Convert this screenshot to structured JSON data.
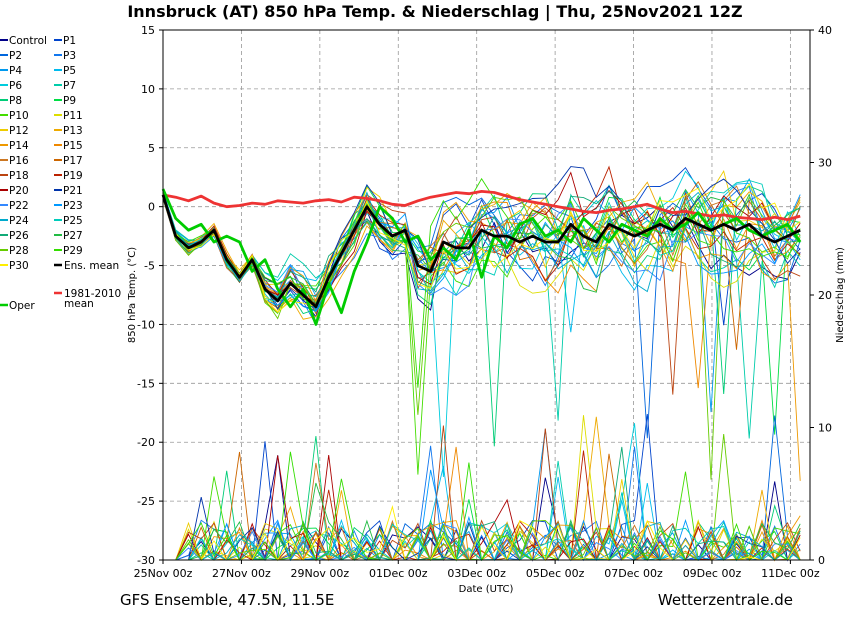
{
  "chart_data": {
    "type": "line",
    "title": "Innsbruck  (AT)  850 hPa Temp. & Niederschlag | Thu, 25Nov2021 12Z",
    "footer_left": "GFS Ensemble, 47.5N, 11.5E",
    "footer_right": "Wetterzentrale.de",
    "xlabel": "Date (UTC)",
    "ylabel_left": "850 hPa Temp. (°C)",
    "ylabel_right": "Niederschlag (mm)",
    "x_ticks": [
      "25Nov 00z",
      "27Nov 00z",
      "29Nov 00z",
      "01Dec 00z",
      "03Dec 00z",
      "05Dec 00z",
      "07Dec 00z",
      "09Dec 00z",
      "11Dec 00z"
    ],
    "x_range_days": [
      0,
      16.5
    ],
    "ylim_left": [
      -30,
      15
    ],
    "yticks_left": [
      15,
      10,
      5,
      0,
      -5,
      -10,
      -15,
      -20,
      -25,
      -30
    ],
    "ylim_right": [
      0,
      40
    ],
    "yticks_right": [
      40,
      30,
      20,
      10,
      0
    ],
    "grid": true,
    "legend_position": "left",
    "series": [
      {
        "name": "Control",
        "color": "#000088"
      },
      {
        "name": "P1",
        "color": "#0044cc"
      },
      {
        "name": "P2",
        "color": "#0066dd"
      },
      {
        "name": "P3",
        "color": "#1177ee"
      },
      {
        "name": "P4",
        "color": "#0099ee"
      },
      {
        "name": "P5",
        "color": "#00bbee"
      },
      {
        "name": "P6",
        "color": "#00ccdd"
      },
      {
        "name": "P7",
        "color": "#00ccaa"
      },
      {
        "name": "P8",
        "color": "#00cc77"
      },
      {
        "name": "P9",
        "color": "#00dd44"
      },
      {
        "name": "P10",
        "color": "#44dd00"
      },
      {
        "name": "P11",
        "color": "#dddd00"
      },
      {
        "name": "P12",
        "color": "#eecc00"
      },
      {
        "name": "P13",
        "color": "#eeaa00"
      },
      {
        "name": "P14",
        "color": "#ee9900"
      },
      {
        "name": "P15",
        "color": "#ee8800"
      },
      {
        "name": "P16",
        "color": "#cc7722"
      },
      {
        "name": "P17",
        "color": "#cc6600"
      },
      {
        "name": "P18",
        "color": "#bb4411"
      },
      {
        "name": "P19",
        "color": "#bb2200"
      },
      {
        "name": "P20",
        "color": "#aa0000"
      },
      {
        "name": "P21",
        "color": "#0033aa"
      },
      {
        "name": "P22",
        "color": "#3388ff"
      },
      {
        "name": "P23",
        "color": "#0099ff"
      },
      {
        "name": "P24",
        "color": "#00aacc"
      },
      {
        "name": "P25",
        "color": "#00ccbb"
      },
      {
        "name": "P26",
        "color": "#11aa77"
      },
      {
        "name": "P27",
        "color": "#22bb44"
      },
      {
        "name": "P28",
        "color": "#66cc00"
      },
      {
        "name": "P29",
        "color": "#33dd00"
      },
      {
        "name": "P30",
        "color": "#ffee00"
      },
      {
        "name": "Ens. mean",
        "color": "#000000",
        "bold": true,
        "values": [
          1,
          -2.5,
          -3.5,
          -3,
          -2,
          -4.5,
          -6,
          -4.5,
          -7,
          -8,
          -6.5,
          -7.5,
          -8.5,
          -6,
          -4,
          -2,
          0,
          -1.5,
          -2.5,
          -2,
          -5,
          -5.5,
          -3,
          -3.5,
          -3.5,
          -2,
          -2.5,
          -2.5,
          -3,
          -2.5,
          -3,
          -3,
          -1.5,
          -2.5,
          -3,
          -1.5,
          -2,
          -2.5,
          -2,
          -1.5,
          -2,
          -1,
          -1.5,
          -2,
          -1.5,
          -2,
          -1.5,
          -2.5,
          -3,
          -2.5,
          -2
        ]
      },
      {
        "name": "1981-2010 mean",
        "color": "#ee3333",
        "bold": true,
        "values": [
          1,
          0.8,
          0.5,
          0.9,
          0.3,
          0,
          0.1,
          0.3,
          0.2,
          0.5,
          0.4,
          0.3,
          0.5,
          0.6,
          0.4,
          0.8,
          0.7,
          0.5,
          0.2,
          0.1,
          0.5,
          0.8,
          1,
          1.2,
          1.1,
          1.3,
          1.2,
          0.9,
          0.6,
          0.4,
          0.2,
          0,
          -0.2,
          -0.4,
          -0.5,
          -0.3,
          -0.2,
          0,
          0.2,
          -0.2,
          -0.5,
          -0.4,
          -0.6,
          -0.8,
          -0.7,
          -0.9,
          -1,
          -1.1,
          -0.9,
          -1.1,
          -0.8
        ]
      },
      {
        "name": "Oper",
        "color": "#00cc00",
        "bold": true,
        "values": [
          1.5,
          -1,
          -2,
          -1.5,
          -3,
          -2.5,
          -3,
          -5.5,
          -4.5,
          -7,
          -8.5,
          -7,
          -10,
          -6.5,
          -9,
          -5.5,
          -3,
          0,
          -1,
          -3,
          -2.5,
          -4.5,
          -3.5,
          -4.5,
          -2,
          -6,
          -2.5,
          -3.5,
          -1.5,
          -1,
          -2.5,
          -2,
          -3,
          -1,
          -2,
          -3,
          -1.5,
          -2,
          -2.5,
          -1,
          -2,
          -1.5,
          -0.5,
          -2,
          -1.5,
          -1,
          -2,
          -2.5,
          -2,
          -1.5,
          -3
        ]
      }
    ],
    "legend_labels": {
      "ens_mean": "Ens. mean",
      "clim_line1": "1981-2010",
      "clim_line2": "mean",
      "oper": "Oper"
    }
  }
}
